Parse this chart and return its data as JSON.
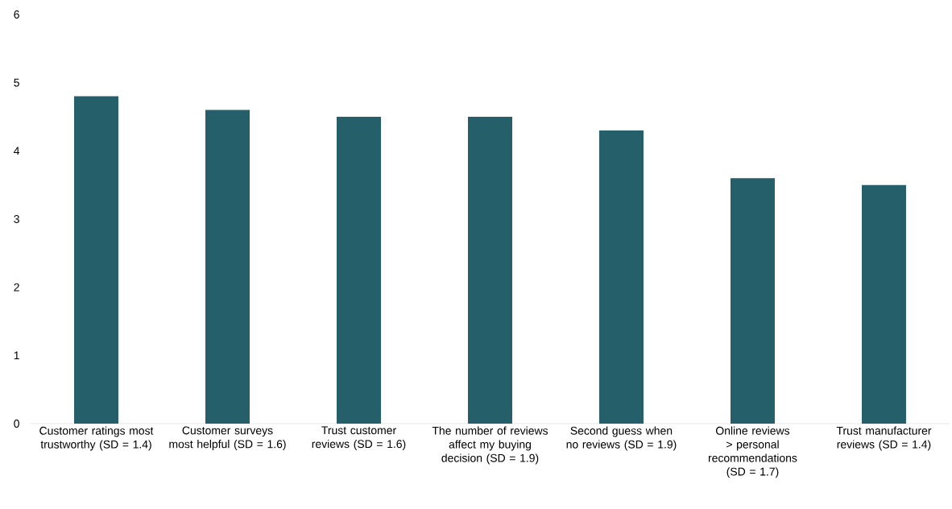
{
  "chart_data": {
    "type": "bar",
    "categories": [
      "Customer ratings most trustworthy (SD = 1.4)",
      "Customer surveys most helpful (SD = 1.6)",
      "Trust customer reviews (SD = 1.6)",
      "The number of reviews affect my buying decision (SD = 1.9)",
      "Second guess when no reviews (SD = 1.9)",
      "Online reviews > personal recommendations (SD = 1.7)",
      "Trust manufacturer reviews (SD = 1.4)"
    ],
    "values": [
      4.8,
      4.6,
      4.5,
      4.5,
      4.3,
      3.6,
      3.5
    ],
    "color": "#255f6a",
    "ylim": [
      0,
      6
    ],
    "yticks": [
      0,
      1,
      2,
      3,
      4,
      5,
      6
    ]
  }
}
